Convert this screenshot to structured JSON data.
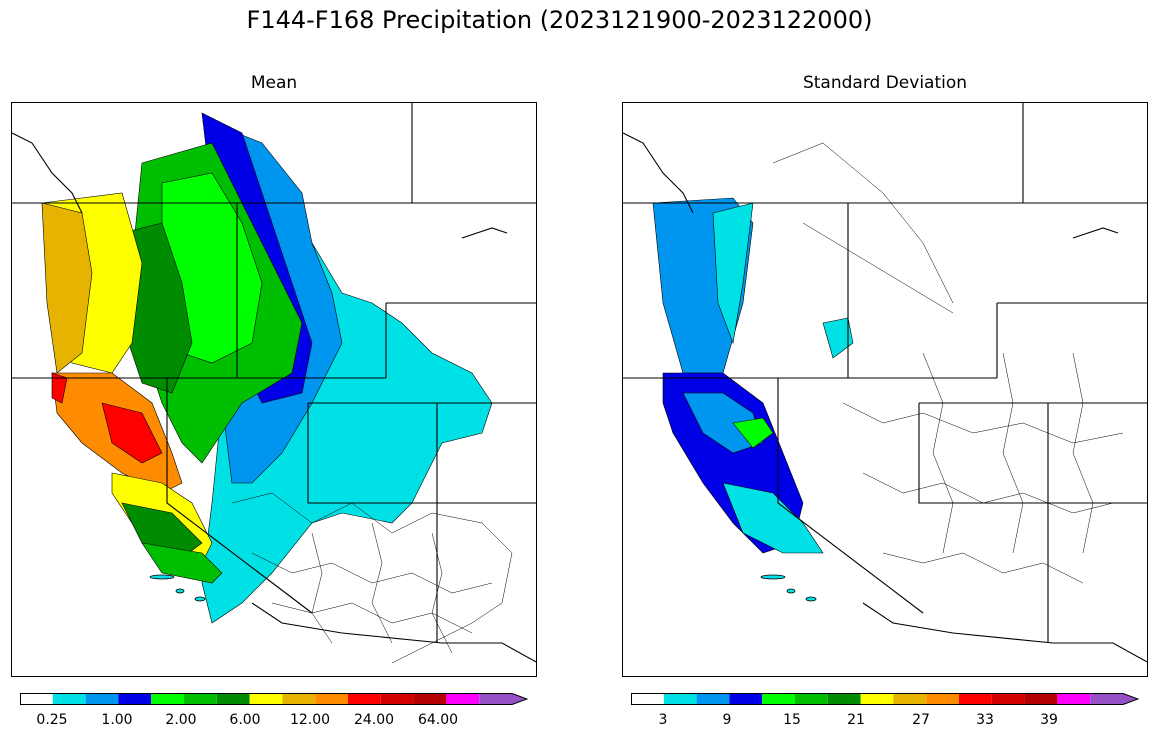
{
  "figure": {
    "title": "F144-F168 Precipitation (2023121900-2023122000)"
  },
  "panels": [
    {
      "id": "mean",
      "subtitle": "Mean",
      "colorbar": {
        "colors": [
          "#ffffff",
          "#00e1e6",
          "#0096f0",
          "#0000e6",
          "#00ff00",
          "#00be00",
          "#008c00",
          "#ffff00",
          "#e6b400",
          "#ff8c00",
          "#ff0000",
          "#d20000",
          "#b40000",
          "#ff00ff",
          "#9650c8"
        ],
        "tick_labels": [
          "0.25",
          "1.00",
          "2.00",
          "6.00",
          "12.00",
          "24.00",
          "64.00"
        ],
        "extend": "max"
      }
    },
    {
      "id": "stddev",
      "subtitle": "Standard Deviation",
      "colorbar": {
        "colors": [
          "#ffffff",
          "#00e1e6",
          "#0096f0",
          "#0000e6",
          "#00ff00",
          "#00be00",
          "#008c00",
          "#ffff00",
          "#e6b400",
          "#ff8c00",
          "#ff0000",
          "#d20000",
          "#b40000",
          "#ff00ff",
          "#9650c8"
        ],
        "tick_labels": [
          "3",
          "9",
          "15",
          "21",
          "27",
          "33",
          "39"
        ],
        "extend": "max"
      }
    }
  ]
}
